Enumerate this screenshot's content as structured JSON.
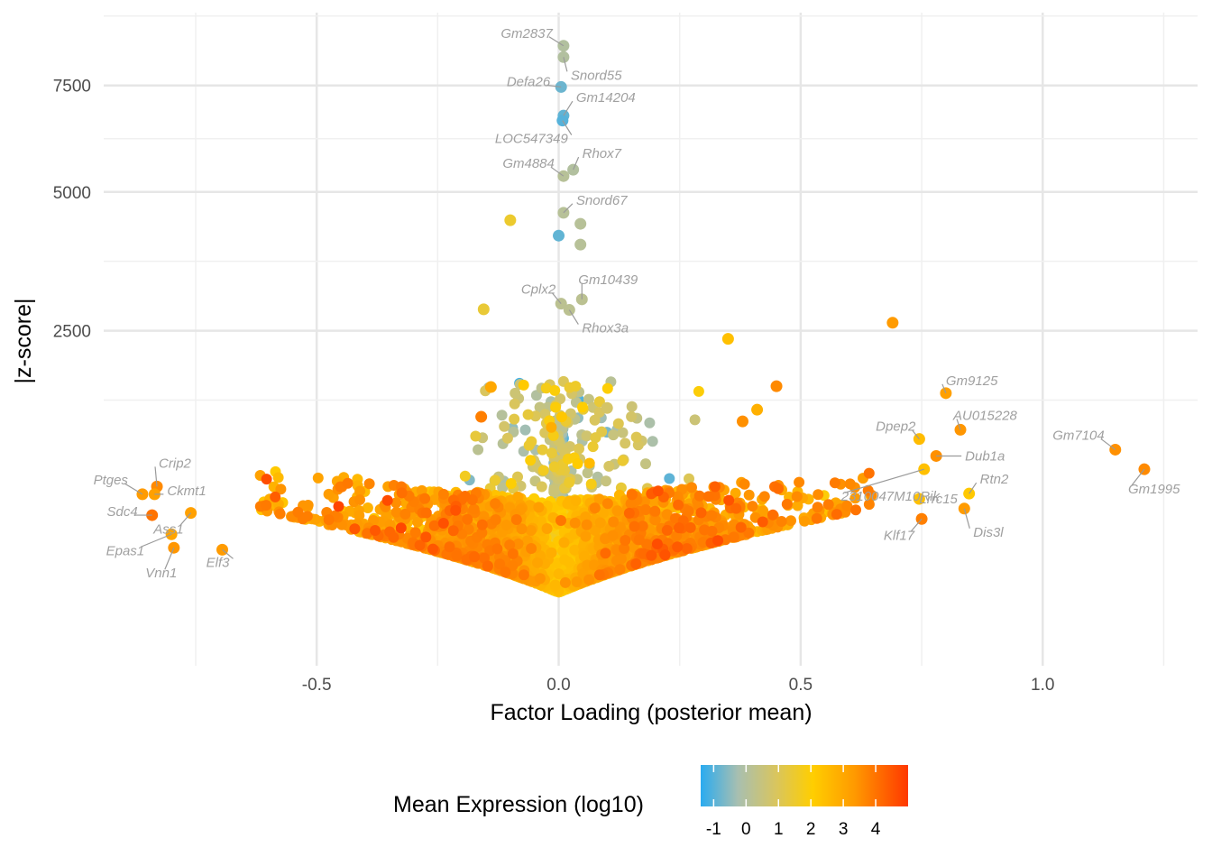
{
  "chart_data": {
    "type": "scatter",
    "xlabel": "Factor Loading (posterior mean)",
    "ylabel": "|z-score|",
    "x_ticks": [
      -0.5,
      0.0,
      0.5,
      1.0
    ],
    "x_tick_labels": [
      "-0.5",
      "0.0",
      "0.5",
      "1.0"
    ],
    "y_ticks": [
      2500,
      5000,
      7500
    ],
    "y_tick_labels": [
      "2500",
      "5000",
      "7500"
    ],
    "y_scale": "sqrt",
    "xlim": [
      -0.94,
      1.32
    ],
    "ylim": [
      0,
      9500
    ],
    "grid": true,
    "legend": {
      "title": "Mean Expression (log10)",
      "position": "bottom",
      "ticks": [
        "-1",
        "0",
        "1",
        "2",
        "3",
        "4"
      ],
      "range": [
        -1.4,
        5.0
      ],
      "colors": [
        "#2aabf0",
        "#a8bfb0",
        "#d8c560",
        "#ffce00",
        "#ff9a00",
        "#ff3800"
      ]
    },
    "labeled_points": [
      {
        "label": "Gm2837",
        "x": 0.01,
        "y": 8560,
        "expr": 0.0
      },
      {
        "label": "Snord55",
        "x": 0.01,
        "y": 8250,
        "expr": 0.0
      },
      {
        "label": "Defa26",
        "x": 0.005,
        "y": 7460,
        "expr": -0.8
      },
      {
        "label": "Gm14204",
        "x": 0.01,
        "y": 6740,
        "expr": -0.9
      },
      {
        "label": "LOC547349",
        "x": 0.008,
        "y": 6620,
        "expr": -1.0
      },
      {
        "label": "Rhox7",
        "x": 0.03,
        "y": 5480,
        "expr": 0.0
      },
      {
        "label": "Gm4884",
        "x": 0.01,
        "y": 5340,
        "expr": 0.1
      },
      {
        "label": "Snord67",
        "x": 0.01,
        "y": 4570,
        "expr": 0.1
      },
      {
        "label": "Gm10439",
        "x": 0.048,
        "y": 2990,
        "expr": 0.2
      },
      {
        "label": "Cplx2",
        "x": 0.005,
        "y": 2920,
        "expr": 0.2
      },
      {
        "label": "Rhox3a",
        "x": 0.022,
        "y": 2820,
        "expr": 0.2
      },
      {
        "label": "Gm9125",
        "x": 0.8,
        "y": 1655,
        "expr": 3.2
      },
      {
        "label": "AU015228",
        "x": 0.83,
        "y": 1240,
        "expr": 3.4
      },
      {
        "label": "Dpep2",
        "x": 0.745,
        "y": 1145,
        "expr": 2.5
      },
      {
        "label": "Gm7104",
        "x": 1.15,
        "y": 1040,
        "expr": 3.5
      },
      {
        "label": "Dub1a",
        "x": 0.78,
        "y": 980,
        "expr": 3.5
      },
      {
        "label": "Gm1995",
        "x": 1.21,
        "y": 860,
        "expr": 3.6
      },
      {
        "label": "2310047M10Rik",
        "x": 0.755,
        "y": 860,
        "expr": 2.4
      },
      {
        "label": "Rtn2",
        "x": 0.848,
        "y": 660,
        "expr": 2.2
      },
      {
        "label": "Lrrc15",
        "x": 0.745,
        "y": 620,
        "expr": 2.4
      },
      {
        "label": "Dis3l",
        "x": 0.838,
        "y": 550,
        "expr": 3.3
      },
      {
        "label": "Klf17",
        "x": 0.75,
        "y": 480,
        "expr": 3.8
      },
      {
        "label": "Crip2",
        "x": -0.83,
        "y": 715,
        "expr": 3.6
      },
      {
        "label": "Ptges",
        "x": -0.86,
        "y": 655,
        "expr": 3.3
      },
      {
        "label": "Ckmt1",
        "x": -0.835,
        "y": 655,
        "expr": 3.2
      },
      {
        "label": "Sdc4",
        "x": -0.84,
        "y": 505,
        "expr": 4.0
      },
      {
        "label": "Ass1",
        "x": -0.76,
        "y": 520,
        "expr": 3.2
      },
      {
        "label": "Epas1",
        "x": -0.8,
        "y": 385,
        "expr": 3.1
      },
      {
        "label": "Elf3",
        "x": -0.695,
        "y": 300,
        "expr": 3.3
      },
      {
        "label": "Vnn1",
        "x": -0.795,
        "y": 310,
        "expr": 3.4
      }
    ],
    "highlight_points": [
      {
        "x": 0.69,
        "y": 2620,
        "expr": 3.3
      },
      {
        "x": 0.35,
        "y": 2380,
        "expr": 2.4
      },
      {
        "x": -0.155,
        "y": 2830,
        "expr": 1.4
      },
      {
        "x": -0.1,
        "y": 4420,
        "expr": 1.5
      },
      {
        "x": 0.045,
        "y": 4350,
        "expr": 0.1
      },
      {
        "x": 0.0,
        "y": 4120,
        "expr": -0.9
      },
      {
        "x": 0.045,
        "y": 3950,
        "expr": 0.1
      },
      {
        "x": 0.45,
        "y": 1740,
        "expr": 3.6
      },
      {
        "x": 0.38,
        "y": 1330,
        "expr": 3.5
      },
      {
        "x": 0.41,
        "y": 1460,
        "expr": 2.8
      },
      {
        "x": -0.14,
        "y": 1730,
        "expr": 3.0
      },
      {
        "x": -0.16,
        "y": 1380,
        "expr": 3.8
      },
      {
        "x": 0.1,
        "y": 1480,
        "expr": 0.8
      }
    ],
    "cloud_seed": 7,
    "cloud_count": 3400
  },
  "labels": {
    "Gm2837": "Gm2837",
    "Snord55": "Snord55",
    "Defa26": "Defa26",
    "Gm14204": "Gm14204",
    "LOC547349": "LOC547349",
    "Rhox7": "Rhox7",
    "Gm4884": "Gm4884",
    "Snord67": "Snord67",
    "Gm10439": "Gm10439",
    "Cplx2": "Cplx2",
    "Rhox3a": "Rhox3a",
    "Gm9125": "Gm9125",
    "AU015228": "AU015228",
    "Dpep2": "Dpep2",
    "Gm7104": "Gm7104",
    "Dub1a": "Dub1a",
    "Gm1995": "Gm1995",
    "2310047M10Rik": "2310047M10Rik",
    "Rtn2": "Rtn2",
    "Lrrc15": "Lrrc15",
    "Dis3l": "Dis3l",
    "Klf17": "Klf17",
    "Crip2": "Crip2",
    "Ptges": "Ptges",
    "Ckmt1": "Ckmt1",
    "Sdc4": "Sdc4",
    "Ass1": "Ass1",
    "Epas1": "Epas1",
    "Elf3": "Elf3",
    "Vnn1": "Vnn1"
  }
}
